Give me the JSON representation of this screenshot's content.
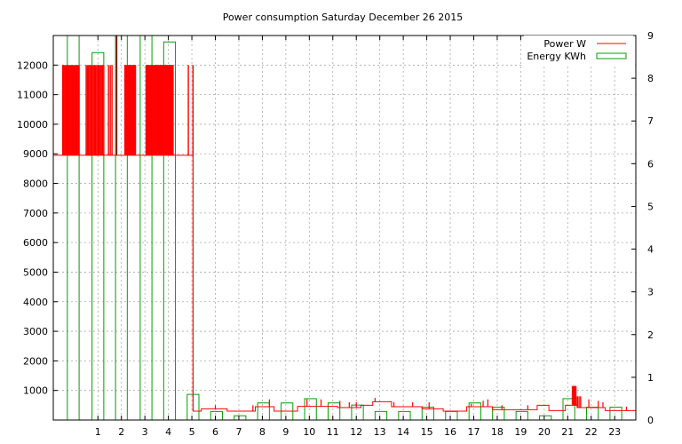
{
  "chart_data": {
    "type": "line",
    "title": "Power consumption Saturday December 26 2015",
    "x": {
      "range": [
        -0.9,
        23.9
      ],
      "ticks": [
        1,
        2,
        3,
        4,
        5,
        6,
        7,
        8,
        9,
        10,
        11,
        12,
        13,
        14,
        15,
        16,
        17,
        18,
        19,
        20,
        21,
        22,
        23
      ]
    },
    "y_left": {
      "range": [
        0,
        13000
      ],
      "ticks": [
        1000,
        2000,
        3000,
        4000,
        5000,
        6000,
        7000,
        8000,
        9000,
        10000,
        11000,
        12000
      ]
    },
    "y_right": {
      "range": [
        0,
        9
      ],
      "ticks": [
        0,
        1,
        2,
        3,
        4,
        5,
        6,
        7,
        8,
        9
      ]
    },
    "grid": true,
    "legend_position": "top-right",
    "series": [
      {
        "name": "Power W",
        "type": "line",
        "color": "#ff0000",
        "axis": "left",
        "baseline_segments": [
          {
            "x0": -0.9,
            "x1": 5.05,
            "y": 8950
          },
          {
            "x0": 5.05,
            "x1": 5.4,
            "y": 300
          },
          {
            "x0": 5.4,
            "x1": 6.5,
            "y": 380
          },
          {
            "x0": 6.5,
            "x1": 7.7,
            "y": 300
          },
          {
            "x0": 7.7,
            "x1": 8.5,
            "y": 450
          },
          {
            "x0": 8.5,
            "x1": 9.5,
            "y": 300
          },
          {
            "x0": 9.5,
            "x1": 11.2,
            "y": 460
          },
          {
            "x0": 11.2,
            "x1": 12.2,
            "y": 420
          },
          {
            "x0": 12.2,
            "x1": 12.7,
            "y": 500
          },
          {
            "x0": 12.7,
            "x1": 13.5,
            "y": 620
          },
          {
            "x0": 13.5,
            "x1": 14.8,
            "y": 450
          },
          {
            "x0": 14.8,
            "x1": 15.7,
            "y": 380
          },
          {
            "x0": 15.7,
            "x1": 16.7,
            "y": 300
          },
          {
            "x0": 16.7,
            "x1": 17.8,
            "y": 450
          },
          {
            "x0": 17.8,
            "x1": 19.7,
            "y": 350
          },
          {
            "x0": 19.7,
            "x1": 20.2,
            "y": 500
          },
          {
            "x0": 20.2,
            "x1": 20.9,
            "y": 320
          },
          {
            "x0": 20.9,
            "x1": 21.4,
            "y": 500
          },
          {
            "x0": 21.4,
            "x1": 22.6,
            "y": 420
          },
          {
            "x0": 22.6,
            "x1": 23.9,
            "y": 320
          }
        ],
        "spike_bands": [
          {
            "x0": -0.5,
            "x1": 0.2,
            "high": 12000,
            "count": 18
          },
          {
            "x0": 0.5,
            "x1": 1.25,
            "high": 12000,
            "count": 16
          },
          {
            "x0": 1.45,
            "x1": 1.6,
            "high": 12000,
            "count": 3
          },
          {
            "x0": 2.15,
            "x1": 2.6,
            "high": 12000,
            "count": 22
          },
          {
            "x0": 3.05,
            "x1": 4.2,
            "high": 12000,
            "count": 60
          },
          {
            "x0": 4.85,
            "x1": 5.05,
            "high": 12000,
            "count": 2
          },
          {
            "x0": 21.2,
            "x1": 21.35,
            "high": 1150,
            "count": 6
          },
          {
            "x0": 21.35,
            "x1": 21.55,
            "high": 800,
            "count": 4
          }
        ],
        "small_spikes": [
          {
            "x": 6.0,
            "y": 500
          },
          {
            "x": 7.6,
            "y": 500
          },
          {
            "x": 8.3,
            "y": 700
          },
          {
            "x": 9.9,
            "y": 700
          },
          {
            "x": 10.5,
            "y": 700
          },
          {
            "x": 11.3,
            "y": 650
          },
          {
            "x": 11.7,
            "y": 600
          },
          {
            "x": 12.0,
            "y": 600
          },
          {
            "x": 12.8,
            "y": 750
          },
          {
            "x": 13.6,
            "y": 600
          },
          {
            "x": 14.4,
            "y": 600
          },
          {
            "x": 15.1,
            "y": 600
          },
          {
            "x": 16.9,
            "y": 550
          },
          {
            "x": 17.4,
            "y": 650
          },
          {
            "x": 17.6,
            "y": 700
          },
          {
            "x": 18.2,
            "y": 500
          },
          {
            "x": 19.3,
            "y": 500
          },
          {
            "x": 21.9,
            "y": 700
          },
          {
            "x": 22.3,
            "y": 650
          },
          {
            "x": 22.5,
            "y": 600
          },
          {
            "x": 23.5,
            "y": 450
          }
        ],
        "cutoff_line": {
          "x": 1.8,
          "y_top": 13000,
          "y_bottom": 8950,
          "color": "#8b0000"
        }
      },
      {
        "name": "Energy KWh",
        "type": "bar",
        "color": "#00a000",
        "axis": "right",
        "bar_width": 0.5,
        "points": [
          {
            "x": -0.05,
            "y": 9.0
          },
          {
            "x": 1.0,
            "y": 8.6
          },
          {
            "x": 2.0,
            "y": 9.0
          },
          {
            "x": 3.05,
            "y": 9.0
          },
          {
            "x": 4.05,
            "y": 8.85
          },
          {
            "x": 5.05,
            "y": 0.6
          },
          {
            "x": 6.05,
            "y": 0.2
          },
          {
            "x": 7.05,
            "y": 0.1
          },
          {
            "x": 8.05,
            "y": 0.4
          },
          {
            "x": 9.05,
            "y": 0.4
          },
          {
            "x": 10.05,
            "y": 0.5
          },
          {
            "x": 11.05,
            "y": 0.4
          },
          {
            "x": 12.05,
            "y": 0.35
          },
          {
            "x": 13.05,
            "y": 0.2
          },
          {
            "x": 14.05,
            "y": 0.2
          },
          {
            "x": 15.05,
            "y": 0.3
          },
          {
            "x": 16.05,
            "y": 0.2
          },
          {
            "x": 17.05,
            "y": 0.4
          },
          {
            "x": 18.05,
            "y": 0.3
          },
          {
            "x": 19.05,
            "y": 0.2
          },
          {
            "x": 20.05,
            "y": 0.1
          },
          {
            "x": 21.05,
            "y": 0.5
          },
          {
            "x": 22.05,
            "y": 0.3
          },
          {
            "x": 23.05,
            "y": 0.3
          }
        ]
      }
    ]
  }
}
